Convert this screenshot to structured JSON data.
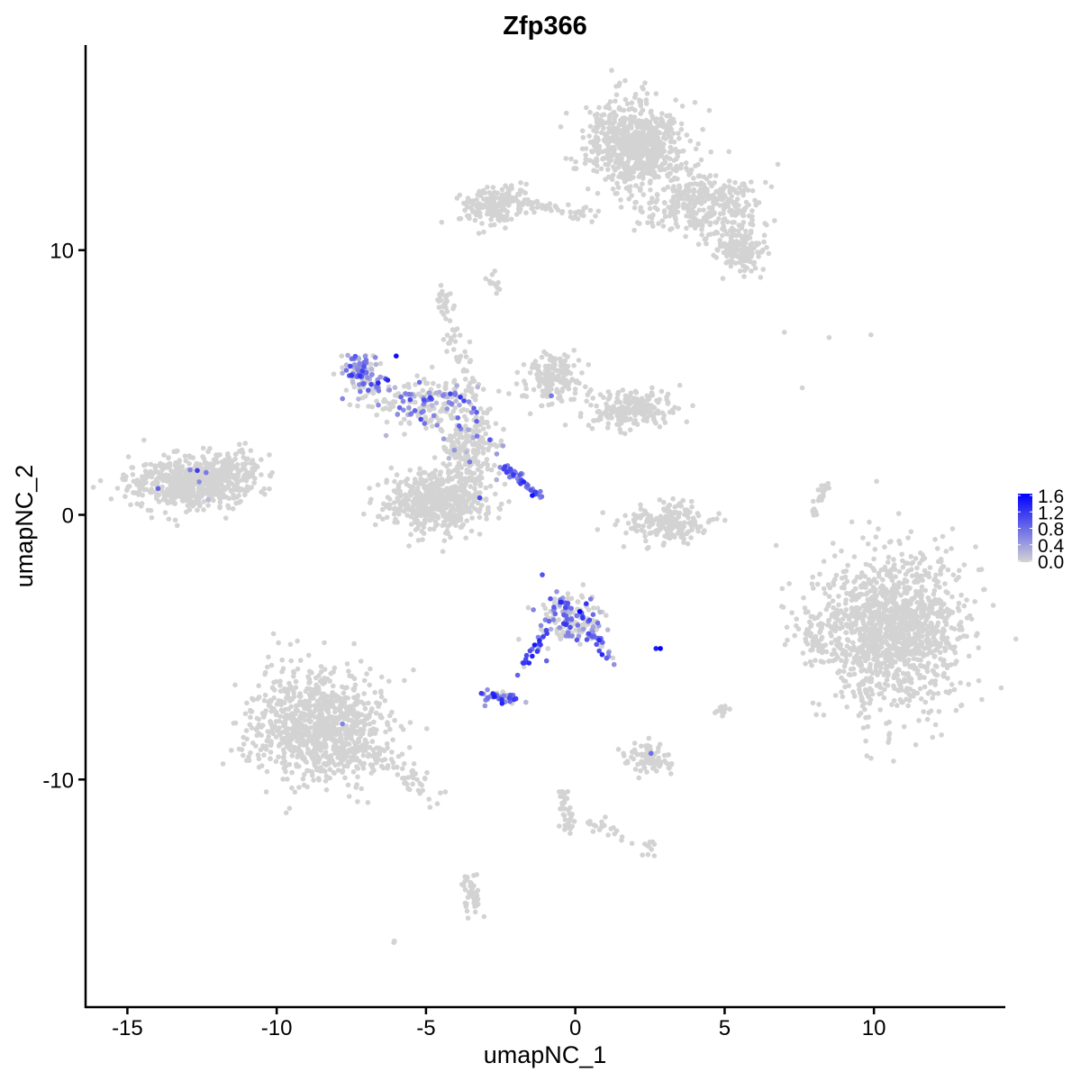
{
  "chart_data": {
    "type": "scatter",
    "title": "Zfp366",
    "xlabel": "umapNC_1",
    "ylabel": "umapNC_2",
    "xlim": [
      -16.4,
      14.4
    ],
    "ylim": [
      -18.6,
      17.75
    ],
    "xticks": [
      -15,
      -10,
      -5,
      0,
      5,
      10
    ],
    "yticks": [
      -10,
      0,
      10
    ],
    "xtick_labels": [
      "-15",
      "-10",
      "-5",
      "0",
      "5",
      "10"
    ],
    "ytick_labels": [
      "-10",
      "0",
      "10"
    ],
    "grid": false,
    "legend": {
      "placement": "right",
      "type": "colorbar",
      "range": [
        0.0,
        1.6
      ],
      "tick_labels": [
        "1.6",
        "1.2",
        "0.8",
        "0.4",
        "0.0"
      ],
      "low_color": "#d3d3d3",
      "high_color": "#0000ff"
    },
    "clusters": [
      {
        "center": [
          2.0,
          14.0
        ],
        "sd": [
          0.8,
          0.8
        ],
        "n": 700,
        "expr_frac": 0,
        "expr_mean": 0
      },
      {
        "center": [
          4.3,
          11.8
        ],
        "sd": [
          1.0,
          0.6
        ],
        "n": 350,
        "expr_frac": 0,
        "expr_mean": 0
      },
      {
        "center": [
          5.5,
          10.0
        ],
        "sd": [
          0.5,
          0.4
        ],
        "n": 120,
        "expr_frac": 0,
        "expr_mean": 0
      },
      {
        "center": [
          -2.7,
          11.7
        ],
        "sd": [
          0.6,
          0.35
        ],
        "n": 180,
        "expr_frac": 0,
        "expr_mean": 0
      },
      {
        "center": [
          -13.0,
          1.2
        ],
        "sd": [
          1.0,
          0.5
        ],
        "n": 550,
        "expr_frac": 0.01,
        "expr_mean": 0.5
      },
      {
        "center": [
          -11.5,
          1.6
        ],
        "sd": [
          0.6,
          0.35
        ],
        "n": 120,
        "expr_frac": 0.01,
        "expr_mean": 0.5
      },
      {
        "center": [
          -4.6,
          0.5
        ],
        "sd": [
          0.8,
          0.55
        ],
        "n": 550,
        "expr_frac": 0,
        "expr_mean": 0
      },
      {
        "center": [
          -3.5,
          2.5
        ],
        "sd": [
          0.5,
          0.7
        ],
        "n": 200,
        "expr_frac": 0.04,
        "expr_mean": 0.6
      },
      {
        "center": [
          -0.8,
          5.2
        ],
        "sd": [
          0.5,
          0.5
        ],
        "n": 160,
        "expr_frac": 0,
        "expr_mean": 0
      },
      {
        "center": [
          1.8,
          4.0
        ],
        "sd": [
          0.7,
          0.35
        ],
        "n": 220,
        "expr_frac": 0,
        "expr_mean": 0
      },
      {
        "center": [
          -5.0,
          4.3
        ],
        "sd": [
          1.0,
          0.5
        ],
        "n": 200,
        "expr_frac": 0.35,
        "expr_mean": 0.6
      },
      {
        "center": [
          -7.2,
          5.4
        ],
        "sd": [
          0.3,
          0.4
        ],
        "n": 70,
        "expr_frac": 0.6,
        "expr_mean": 0.6
      },
      {
        "center": [
          3.1,
          -0.3
        ],
        "sd": [
          0.8,
          0.35
        ],
        "n": 200,
        "expr_frac": 0,
        "expr_mean": 0
      },
      {
        "center": [
          10.6,
          -4.4
        ],
        "sd": [
          1.2,
          1.5
        ],
        "n": 1300,
        "expr_frac": 0,
        "expr_mean": 0
      },
      {
        "center": [
          8.0,
          -4.5
        ],
        "sd": [
          0.25,
          0.4
        ],
        "n": 50,
        "expr_frac": 0,
        "expr_mean": 0
      },
      {
        "center": [
          -8.6,
          -8.0
        ],
        "sd": [
          1.1,
          1.0
        ],
        "n": 900,
        "expr_frac": 0.003,
        "expr_mean": 0.6
      },
      {
        "center": [
          -0.2,
          -3.9
        ],
        "sd": [
          0.55,
          0.5
        ],
        "n": 170,
        "expr_frac": 0.5,
        "expr_mean": 0.7
      },
      {
        "center": [
          -2.5,
          -6.95
        ],
        "sd": [
          0.3,
          0.12
        ],
        "n": 45,
        "expr_frac": 0.8,
        "expr_mean": 0.7
      },
      {
        "center": [
          2.5,
          -9.2
        ],
        "sd": [
          0.4,
          0.3
        ],
        "n": 90,
        "expr_frac": 0.01,
        "expr_mean": 0.6
      },
      {
        "center": [
          4.9,
          -7.3
        ],
        "sd": [
          0.1,
          0.12
        ],
        "n": 15,
        "expr_frac": 0,
        "expr_mean": 0
      },
      {
        "center": [
          -4.4,
          8.0
        ],
        "sd": [
          0.12,
          0.25
        ],
        "n": 25,
        "expr_frac": 0,
        "expr_mean": 0
      },
      {
        "center": [
          -6.1,
          -16.1
        ],
        "sd": [
          0.05,
          0.05
        ],
        "n": 3,
        "expr_frac": 0,
        "expr_mean": 0
      }
    ],
    "lines": [
      {
        "from": [
          -2.5,
          1.9
        ],
        "to": [
          -1.2,
          0.7
        ],
        "n": 45,
        "jitter": 0.08,
        "expr_frac": 0.95,
        "expr_mean": 0.7
      },
      {
        "from": [
          -1.6,
          11.7
        ],
        "to": [
          0.7,
          11.3
        ],
        "n": 40,
        "jitter": 0.12,
        "expr_frac": 0,
        "expr_mean": 0
      },
      {
        "from": [
          -7.6,
          6.0
        ],
        "to": [
          -6.4,
          4.6
        ],
        "n": 40,
        "jitter": 0.2,
        "expr_frac": 0.5,
        "expr_mean": 0.6
      },
      {
        "from": [
          -3.2,
          4.0
        ],
        "to": [
          -4.3,
          7.5
        ],
        "n": 40,
        "jitter": 0.18,
        "expr_frac": 0,
        "expr_mean": 0
      },
      {
        "from": [
          -4.8,
          -10.6
        ],
        "to": [
          -7.5,
          -8.5
        ],
        "n": 90,
        "jitter": 0.3,
        "expr_frac": 0,
        "expr_mean": 0
      },
      {
        "from": [
          -0.4,
          -10.4
        ],
        "to": [
          -0.2,
          -12.0
        ],
        "n": 40,
        "jitter": 0.12,
        "expr_frac": 0,
        "expr_mean": 0
      },
      {
        "from": [
          -3.6,
          -13.6
        ],
        "to": [
          -3.3,
          -15.2
        ],
        "n": 45,
        "jitter": 0.15,
        "expr_frac": 0,
        "expr_mean": 0
      },
      {
        "from": [
          0.3,
          -11.6
        ],
        "to": [
          2.6,
          -12.6
        ],
        "n": 30,
        "jitter": 0.15,
        "expr_frac": 0,
        "expr_mean": 0
      },
      {
        "from": [
          7.9,
          -0.1
        ],
        "to": [
          8.4,
          1.2
        ],
        "n": 25,
        "jitter": 0.06,
        "expr_frac": 0,
        "expr_mean": 0
      },
      {
        "from": [
          -1.1,
          -4.6
        ],
        "to": [
          -1.9,
          -6.0
        ],
        "n": 20,
        "jitter": 0.08,
        "expr_frac": 0.9,
        "expr_mean": 0.9
      },
      {
        "from": [
          0.6,
          -4.4
        ],
        "to": [
          1.2,
          -5.6
        ],
        "n": 25,
        "jitter": 0.12,
        "expr_frac": 0.7,
        "expr_mean": 0.7
      },
      {
        "from": [
          -2.75,
          9.3
        ],
        "to": [
          -2.75,
          8.5
        ],
        "n": 12,
        "jitter": 0.1,
        "expr_frac": 0,
        "expr_mean": 0
      },
      {
        "from": [
          5.0,
          10.8
        ],
        "to": [
          6.0,
          9.3
        ],
        "n": 30,
        "jitter": 0.2,
        "expr_frac": 0,
        "expr_mean": 0
      }
    ],
    "points": [
      {
        "x": -6.0,
        "y": 6.0,
        "value": 1.5
      },
      {
        "x": 0.15,
        "y": -3.65,
        "value": 1.6
      },
      {
        "x": 2.85,
        "y": -5.05,
        "value": 1.6
      },
      {
        "x": 2.7,
        "y": -5.05,
        "value": 1.4
      },
      {
        "x": -1.55,
        "y": -5.6,
        "value": 1.3
      },
      {
        "x": -3.85,
        "y": 4.45,
        "value": 1.2
      },
      {
        "x": -0.5,
        "y": -3.3,
        "value": 1.3
      },
      {
        "x": 0.25,
        "y": -3.9,
        "value": 1.2
      },
      {
        "x": -0.8,
        "y": 4.5,
        "value": 0.7
      },
      {
        "x": 7.0,
        "y": 6.9,
        "value": 0.0
      },
      {
        "x": 8.5,
        "y": 6.7,
        "value": 0.0
      },
      {
        "x": 9.9,
        "y": 6.8,
        "value": 0.0
      },
      {
        "x": 7.6,
        "y": 4.8,
        "value": 0.0
      },
      {
        "x": -7.8,
        "y": -7.9,
        "value": 0.6
      },
      {
        "x": -12.9,
        "y": 1.7,
        "value": 0.6
      }
    ]
  }
}
